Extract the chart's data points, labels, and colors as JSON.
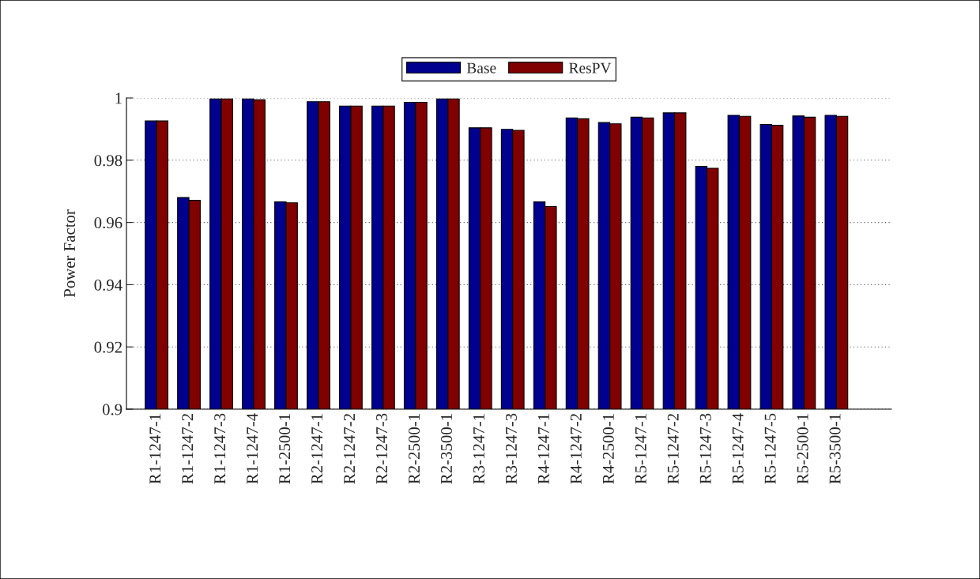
{
  "chart_data": {
    "type": "bar",
    "ylabel": "Power Factor",
    "categories": [
      "R1-1247-1",
      "R1-1247-2",
      "R1-1247-3",
      "R1-1247-4",
      "R1-2500-1",
      "R2-1247-1",
      "R2-1247-2",
      "R2-1247-3",
      "R2-2500-1",
      "R2-3500-1",
      "R3-1247-1",
      "R3-1247-3",
      "R4-1247-1",
      "R4-1247-2",
      "R4-2500-1",
      "R5-1247-1",
      "R5-1247-2",
      "R5-1247-3",
      "R5-1247-4",
      "R5-1247-5",
      "R5-2500-1",
      "R5-3500-1"
    ],
    "series": [
      {
        "name": "Base",
        "color": "#00008f",
        "values": [
          0.9926,
          0.968,
          0.9997,
          0.9997,
          0.9666,
          0.9988,
          0.9974,
          0.9974,
          0.9986,
          0.9997,
          0.9904,
          0.9899,
          0.9666,
          0.9936,
          0.9921,
          0.9938,
          0.9952,
          0.978,
          0.9944,
          0.9915,
          0.9942,
          0.9944
        ]
      },
      {
        "name": "ResPV",
        "color": "#800000",
        "values": [
          0.9926,
          0.9671,
          0.9997,
          0.9994,
          0.9663,
          0.9988,
          0.9974,
          0.9974,
          0.9986,
          0.9997,
          0.9904,
          0.9896,
          0.9651,
          0.9933,
          0.9917,
          0.9936,
          0.9952,
          0.9774,
          0.9941,
          0.9912,
          0.9938,
          0.9941
        ]
      }
    ],
    "ylim": [
      0.9,
      1.0
    ],
    "yticks": [
      {
        "value": 0.9,
        "label": "0.9"
      },
      0.92,
      0.94,
      0.96,
      0.98,
      {
        "value": 1.0,
        "label": "1"
      }
    ],
    "grid": "y",
    "legend": "top"
  }
}
